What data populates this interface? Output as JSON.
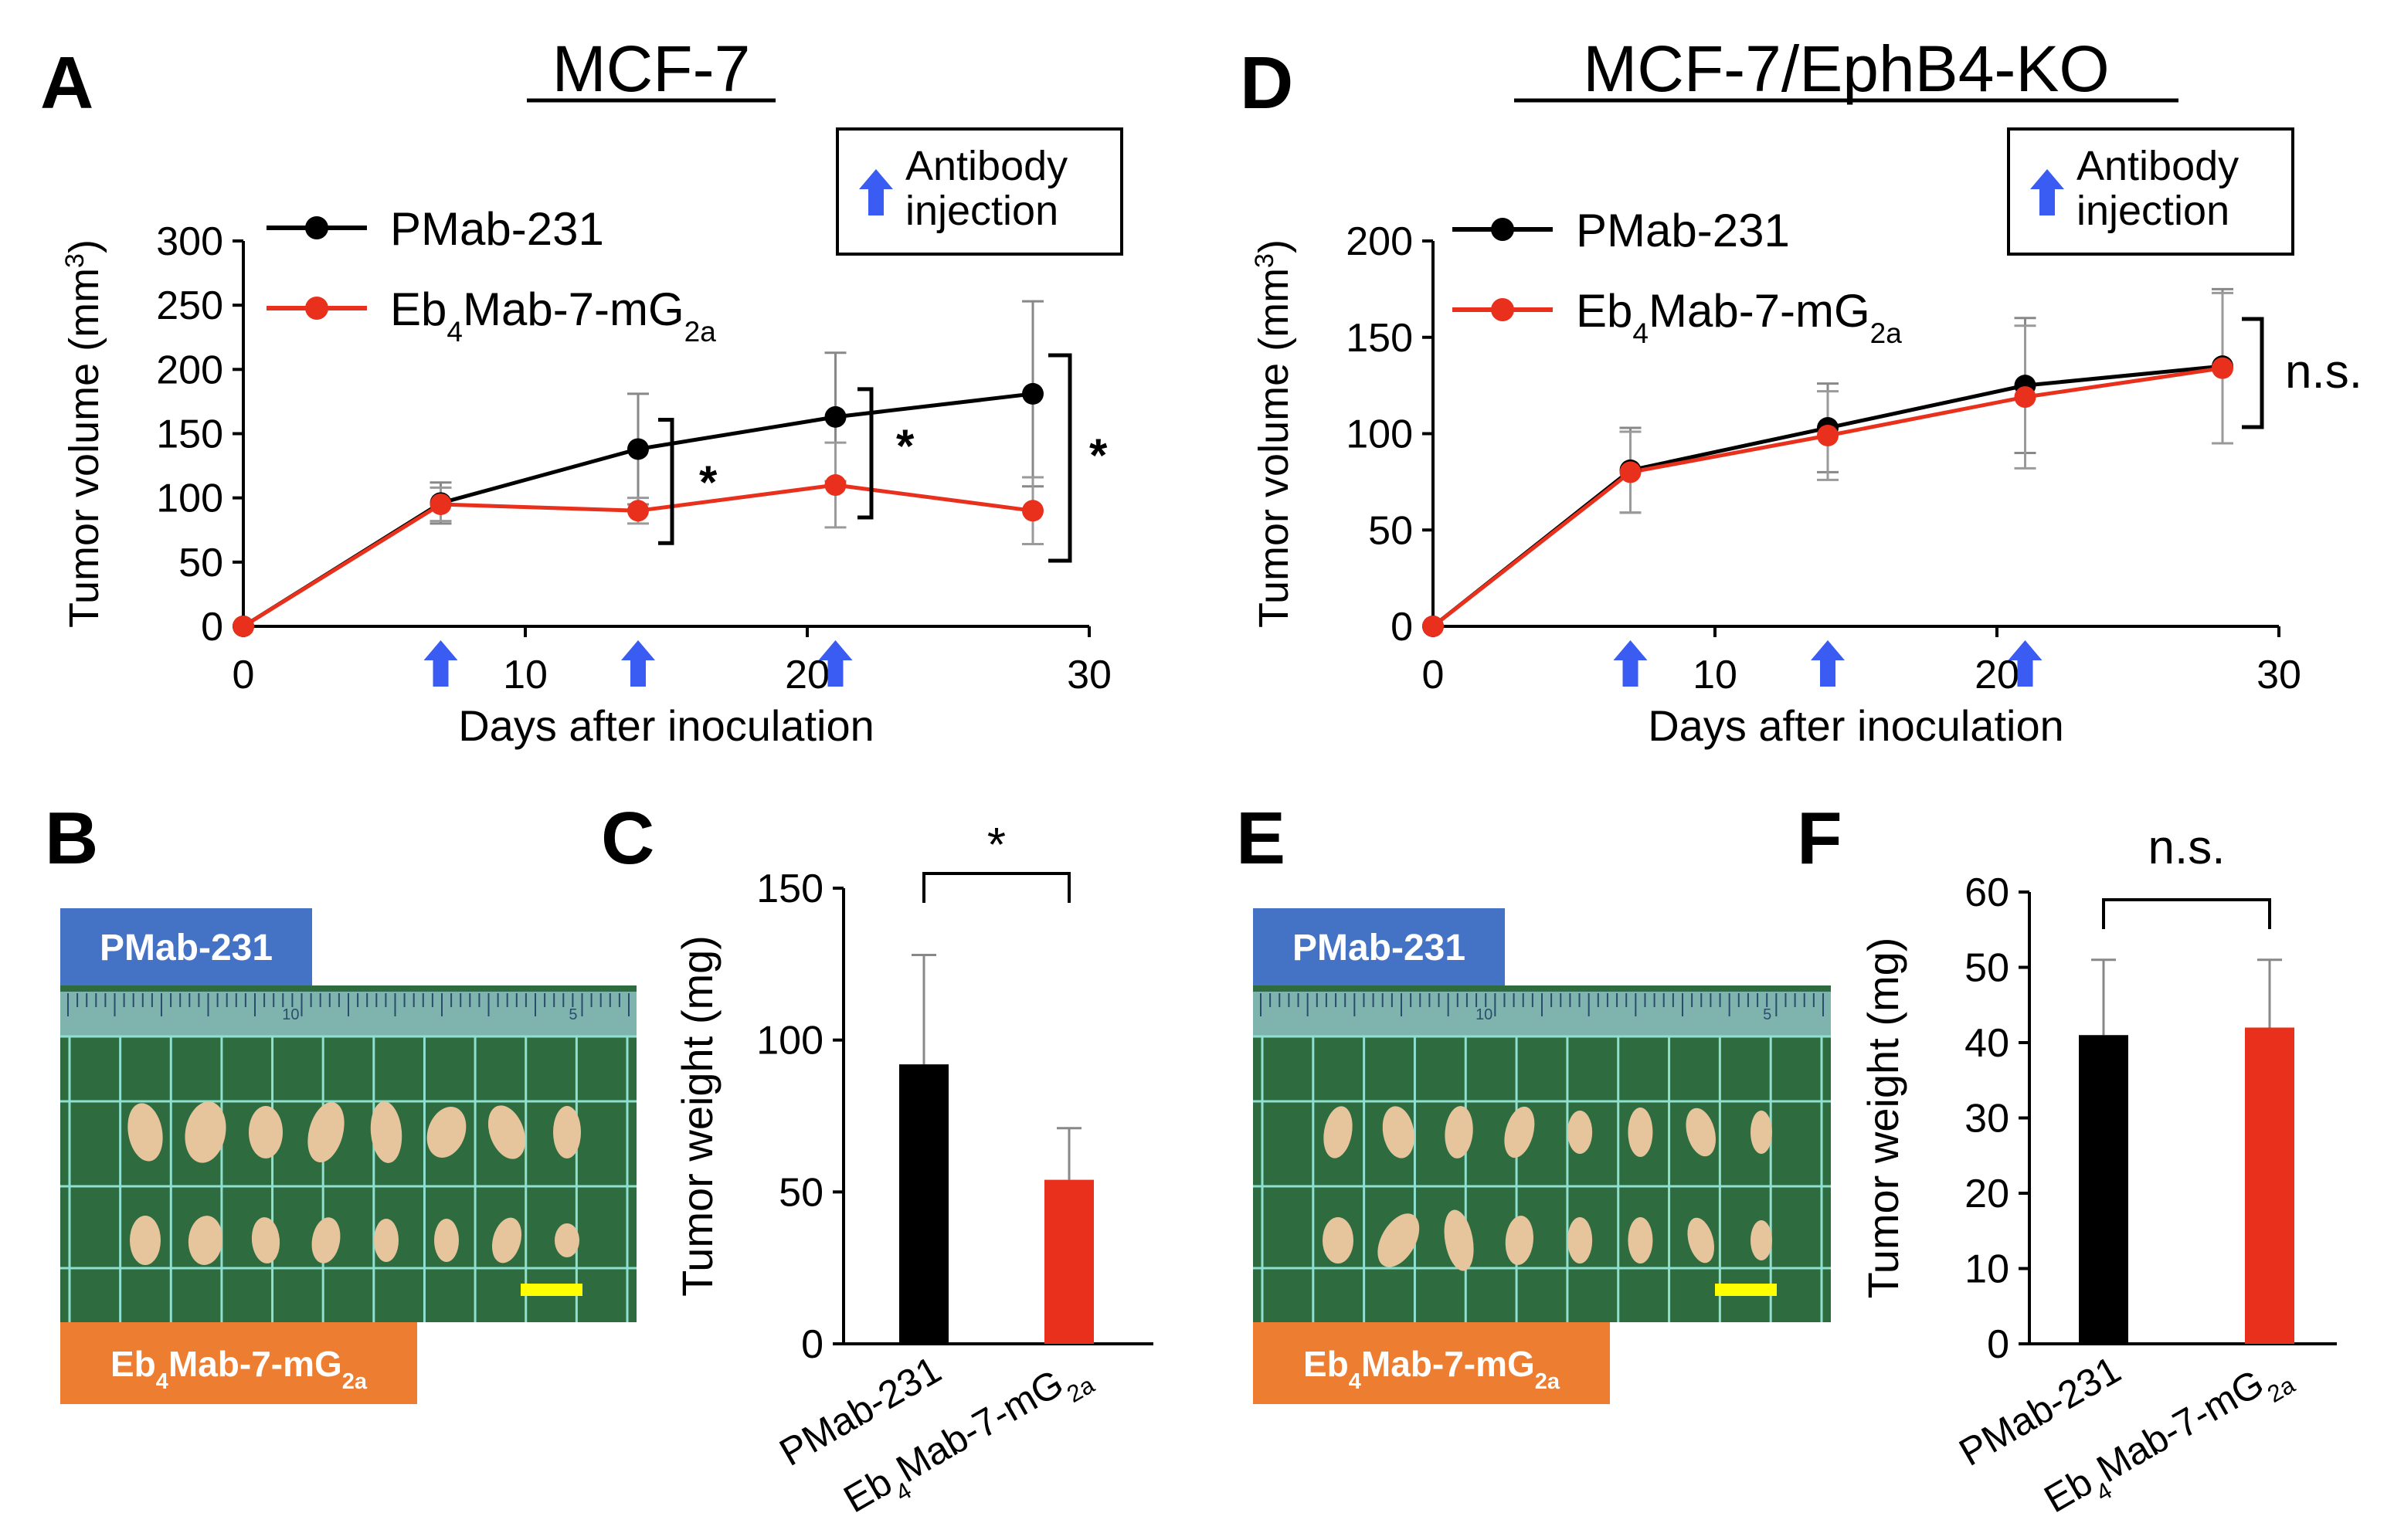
{
  "colors": {
    "black_series": "#000000",
    "red_series": "#e8301c",
    "arrow": "#3a5cf2",
    "blue_label": "#4472c4",
    "orange_label": "#ed7d31",
    "board": "#2e6b3f",
    "grid_lines": "#8fe0d0",
    "tumor": "#e6c49c",
    "scale_bar": "#ffff00"
  },
  "panels": {
    "A": {
      "letter": "A",
      "title": "MCF-7"
    },
    "B": {
      "letter": "B",
      "label_top": "PMab-231",
      "label_bottom": "Eb₄Mab-7-mG₂ₐ",
      "ruler_marks": [
        "10",
        "5"
      ]
    },
    "C": {
      "letter": "C"
    },
    "D": {
      "letter": "D",
      "title": "MCF-7/EphB4-KO"
    },
    "E": {
      "letter": "E",
      "label_top": "PMab-231",
      "label_bottom": "Eb₄Mab-7-mG₂ₐ",
      "ruler_marks": [
        "10",
        "5"
      ]
    },
    "F": {
      "letter": "F"
    }
  },
  "chart_data": [
    {
      "panel": "A",
      "type": "line",
      "title": "MCF-7",
      "xlabel": "Days after inoculation",
      "ylabel": "Tumor volume (mm³)",
      "xlim": [
        0,
        30
      ],
      "ylim": [
        0,
        300
      ],
      "xticks": [
        0,
        10,
        20,
        30
      ],
      "yticks": [
        0,
        50,
        100,
        150,
        200,
        250,
        300
      ],
      "legend_box": {
        "line1": "Antibody",
        "line2": "injection"
      },
      "injection_days": [
        7,
        14,
        21
      ],
      "x": [
        0,
        7,
        14,
        21,
        28
      ],
      "series": [
        {
          "name": "PMab-231",
          "label_main": "PMab-231",
          "label_sub1": "",
          "label_sub2": "",
          "label_tail": "",
          "color": "#000000",
          "values": [
            0,
            96,
            138,
            163,
            181
          ],
          "errors": [
            0,
            16,
            43,
            50,
            72
          ]
        },
        {
          "name": "Eb4Mab-7-mG2a",
          "label_main": "Eb",
          "label_sub1": "4",
          "label_mid": "Mab-7-mG",
          "label_sub2": "2a",
          "color": "#e8301c",
          "values": [
            0,
            95,
            90,
            110,
            90
          ],
          "errors": [
            0,
            13,
            10,
            33,
            26
          ]
        }
      ],
      "significance": [
        "*",
        "*",
        "*"
      ]
    },
    {
      "panel": "C",
      "type": "bar",
      "ylabel": "Tumor weight (mg)",
      "ylim": [
        0,
        150
      ],
      "yticks": [
        0,
        50,
        100,
        150
      ],
      "categories": [
        "PMab-231",
        "Eb4Mab-7-mG2a"
      ],
      "category_labels": [
        {
          "main": "PMab-231"
        },
        {
          "main": "Eb",
          "sub1": "4",
          "mid": "Mab-7-mG",
          "sub2": "2a"
        }
      ],
      "values": [
        92,
        54
      ],
      "errors": [
        36,
        17
      ],
      "bar_colors": [
        "#000000",
        "#e8301c"
      ],
      "significance": "*"
    },
    {
      "panel": "D",
      "type": "line",
      "title": "MCF-7/EphB4-KO",
      "xlabel": "Days after inoculation",
      "ylabel": "Tumor volume (mm³)",
      "xlim": [
        0,
        30
      ],
      "ylim": [
        0,
        200
      ],
      "xticks": [
        0,
        10,
        20,
        30
      ],
      "yticks": [
        0,
        50,
        100,
        150,
        200
      ],
      "legend_box": {
        "line1": "Antibody",
        "line2": "injection"
      },
      "injection_days": [
        7,
        14,
        21
      ],
      "x": [
        0,
        7,
        14,
        21,
        28
      ],
      "series": [
        {
          "name": "PMab-231",
          "label_main": "PMab-231",
          "color": "#000000",
          "values": [
            0,
            81,
            103,
            125,
            135
          ],
          "errors": [
            0,
            22,
            23,
            35,
            40
          ]
        },
        {
          "name": "Eb4Mab-7-mG2a",
          "label_main": "Eb",
          "label_sub1": "4",
          "label_mid": "Mab-7-mG",
          "label_sub2": "2a",
          "color": "#e8301c",
          "values": [
            0,
            80,
            99,
            119,
            134
          ],
          "errors": [
            0,
            21,
            23,
            37,
            39
          ]
        }
      ],
      "significance": [
        "n.s."
      ]
    },
    {
      "panel": "F",
      "type": "bar",
      "ylabel": "Tumor weight (mg)",
      "ylim": [
        0,
        60
      ],
      "yticks": [
        0,
        10,
        20,
        30,
        40,
        50,
        60
      ],
      "categories": [
        "PMab-231",
        "Eb4Mab-7-mG2a"
      ],
      "category_labels": [
        {
          "main": "PMab-231"
        },
        {
          "main": "Eb",
          "sub1": "4",
          "mid": "Mab-7-mG",
          "sub2": "2a"
        }
      ],
      "values": [
        41,
        42
      ],
      "errors": [
        10,
        9
      ],
      "bar_colors": [
        "#000000",
        "#e8301c"
      ],
      "significance": "n.s."
    }
  ]
}
